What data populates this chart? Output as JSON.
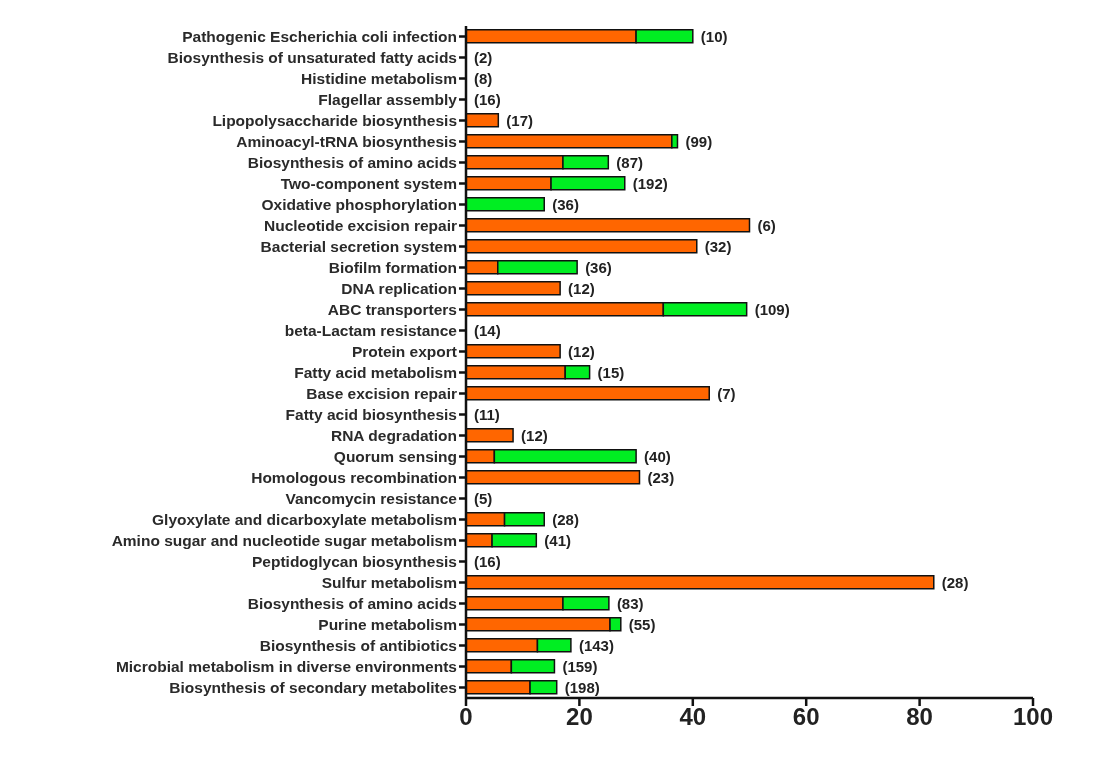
{
  "chart_data": {
    "type": "bar",
    "orientation": "horizontal",
    "stacked": true,
    "categories": [
      "Pathogenic Escherichia coli infection",
      "Biosynthesis of unsaturated fatty acids",
      "Histidine metabolism",
      "Flagellar assembly",
      "Lipopolysaccharide biosynthesis",
      "Aminoacyl-tRNA biosynthesis",
      "Biosynthesis of amino acids",
      "Two-component system",
      "Oxidative phosphorylation",
      "Nucleotide excision repair",
      "Bacterial secretion system",
      "Biofilm formation",
      "DNA replication",
      "ABC transporters",
      "beta-Lactam resistance",
      "Protein export",
      "Fatty acid metabolism",
      "Base excision repair",
      "Fatty acid biosynthesis",
      "RNA degradation",
      "Quorum sensing",
      "Homologous recombination",
      "Vancomycin resistance",
      "Glyoxylate and dicarboxylate metabolism",
      "Amino sugar and nucleotide sugar metabolism",
      "Peptidoglycan biosynthesis",
      "Sulfur metabolism",
      "Biosynthesis of amino acids",
      "Purine metabolism",
      "Biosynthesis of antibiotics",
      "Microbial metabolism in diverse environments",
      "Biosynthesis of secondary metabolites"
    ],
    "series": [
      {
        "color": "#ff6600",
        "values": [
          30,
          0,
          0,
          0,
          5.7,
          36.3,
          17.1,
          15,
          0,
          50,
          40.7,
          5.6,
          16.6,
          34.8,
          0,
          16.6,
          17.5,
          42.9,
          0,
          8.3,
          5,
          30.6,
          0,
          6.8,
          4.6,
          0,
          82.5,
          17.1,
          25.4,
          12.6,
          8,
          11.3
        ]
      },
      {
        "color": "#00ee22",
        "values": [
          10,
          0,
          0,
          0,
          0,
          1,
          8,
          13,
          13.8,
          0,
          0,
          14,
          0,
          14.7,
          0,
          0,
          4.3,
          0,
          0,
          0,
          25,
          0,
          0,
          7,
          7.8,
          0,
          0,
          8.1,
          1.9,
          5.9,
          7.6,
          4.7
        ]
      }
    ],
    "annotations": [
      {
        "text": "(10)",
        "x": 40,
        "y": "Pathogenic Escherichia coli infection"
      },
      {
        "text": "(2)",
        "x": 0,
        "y": "Biosynthesis of unsaturated fatty acids"
      },
      {
        "text": "(8)",
        "x": 0,
        "y": "Histidine metabolism"
      },
      {
        "text": "(16)",
        "x": 0,
        "y": "Flagellar assembly"
      },
      {
        "text": "(17)",
        "x": 5.7,
        "y": "Lipopolysaccharide biosynthesis"
      },
      {
        "text": "(99)",
        "x": 37.3,
        "y": "Aminoacyl-tRNA biosynthesis"
      },
      {
        "text": "(87)",
        "x": 25.1,
        "y": "Biosynthesis of amino acids"
      },
      {
        "text": "(192)",
        "x": 28,
        "y": "Two-component system"
      },
      {
        "text": "(36)",
        "x": 13.8,
        "y": "Oxidative phosphorylation"
      },
      {
        "text": "(6)",
        "x": 50,
        "y": "Nucleotide excision repair"
      },
      {
        "text": "(32)",
        "x": 40.7,
        "y": "Bacterial secretion system"
      },
      {
        "text": "(36)",
        "x": 19.6,
        "y": "Biofilm formation"
      },
      {
        "text": "(12)",
        "x": 16.6,
        "y": "DNA replication"
      },
      {
        "text": "(109)",
        "x": 49.5,
        "y": "ABC transporters"
      },
      {
        "text": "(14)",
        "x": 0,
        "y": "beta-Lactam resistance"
      },
      {
        "text": "(12)",
        "x": 16.6,
        "y": "Protein export"
      },
      {
        "text": "(15)",
        "x": 21.8,
        "y": "Fatty acid metabolism"
      },
      {
        "text": "(7)",
        "x": 42.9,
        "y": "Base excision repair"
      },
      {
        "text": "(11)",
        "x": 0,
        "y": "Fatty acid biosynthesis"
      },
      {
        "text": "(12)",
        "x": 8.3,
        "y": "RNA degradation"
      },
      {
        "text": "(40)",
        "x": 30,
        "y": "Quorum sensing"
      },
      {
        "text": "(23)",
        "x": 30.6,
        "y": "Homologous recombination"
      },
      {
        "text": "(5)",
        "x": 0,
        "y": "Vancomycin resistance"
      },
      {
        "text": "(28)",
        "x": 13.8,
        "y": "Glyoxylate and dicarboxylate metabolism"
      },
      {
        "text": "(41)",
        "x": 12.4,
        "y": "Amino sugar and nucleotide sugar metabolism"
      },
      {
        "text": "(16)",
        "x": 0,
        "y": "Peptidoglycan biosynthesis"
      },
      {
        "text": "(28)",
        "x": 82.5,
        "y": "Sulfur metabolism"
      },
      "(83)",
      {
        "text": "(55)",
        "x": 27.3,
        "y": "Purine metabolism"
      },
      {
        "text": "(143)",
        "x": 18.5,
        "y": "Biosynthesis of antibiotics"
      },
      {
        "text": "(159)",
        "x": 15.6,
        "y": "Microbial metabolism in diverse environments"
      },
      {
        "text": "(198)",
        "x": 16,
        "y": "Biosynthesis of secondary metabolites"
      }
    ],
    "xlim": [
      0,
      100
    ],
    "xticks": [
      0,
      20,
      40,
      60,
      80,
      100
    ],
    "legend": false
  }
}
